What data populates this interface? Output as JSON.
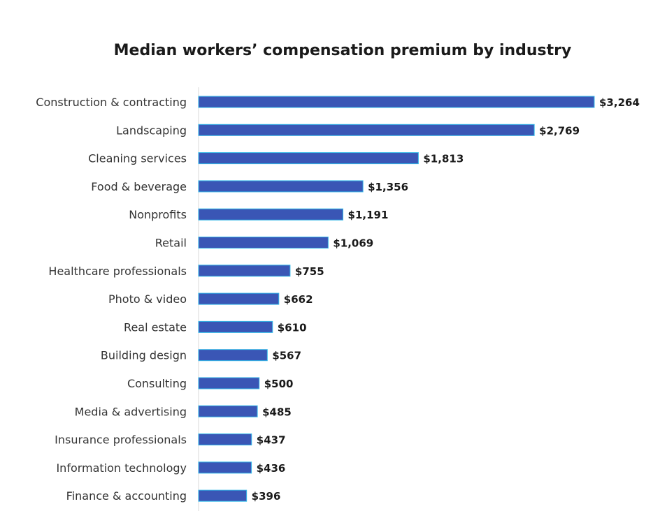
{
  "chart_data": {
    "type": "bar",
    "orientation": "horizontal",
    "title": "Median workers’ compensation premium by industry",
    "xlabel": "",
    "ylabel": "",
    "grid": false,
    "legend": "none",
    "bar_color": "#3a56b5",
    "bar_edge_color": "#35b8e8",
    "xlim": [
      0,
      3264
    ],
    "categories": [
      "Construction & contracting",
      "Landscaping",
      "Cleaning services",
      "Food & beverage",
      "Nonprofits",
      "Retail",
      "Healthcare professionals",
      "Photo & video",
      "Real estate",
      "Building design",
      "Consulting",
      "Media & advertising",
      "Insurance professionals",
      "Information technology",
      "Finance & accounting"
    ],
    "values": [
      3264,
      2769,
      1813,
      1356,
      1191,
      1069,
      755,
      662,
      610,
      567,
      500,
      485,
      437,
      436,
      396
    ],
    "value_labels": [
      "$3,264",
      "$2,769",
      "$1,813",
      "$1,356",
      "$1,191",
      "$1,069",
      "$755",
      "$662",
      "$610",
      "$567",
      "$500",
      "$485",
      "$437",
      "$436",
      "$396"
    ]
  }
}
